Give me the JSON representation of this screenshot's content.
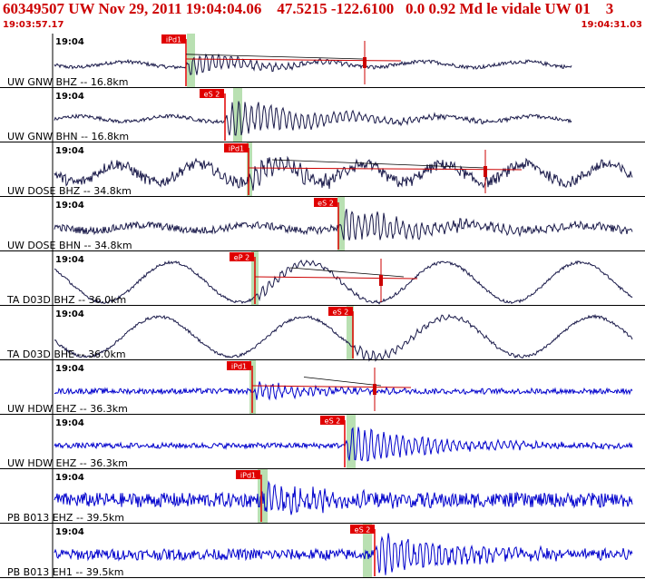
{
  "header": {
    "title": "60349507 UW Nov 29, 2011 19:04:04.06    47.5215 -122.6100   0.0 0.92 Md le vidale UW 01    3",
    "start_time": "19:03:57.17",
    "end_time": "19:04:31.03"
  },
  "colors": {
    "header_text": "#cc0000",
    "pick_box": "#e00000",
    "pick_text": "#ffffff",
    "window": "#b9e0b2",
    "trace_dark": "#1a1a4a",
    "trace_blue": "#0000cc",
    "coda_line": "#cc0000",
    "separator": "#000000"
  },
  "chart_data": {
    "type": "line",
    "title": "60349507 UW Nov 29, 2011 19:04:04.06    47.5215 -122.6100   0.0 0.92 Md le vidale UW 01    3",
    "time_range": [
      "19:03:57.17",
      "19:04:31.03"
    ],
    "series": [
      {
        "name": "UW GNW BHZ -- 16.8km",
        "time_label": "19:04",
        "pick": "iPd1",
        "color": "trace_dark"
      },
      {
        "name": "UW GNW BHN -- 16.8km",
        "time_label": "19:04",
        "pick": "eS 2",
        "color": "trace_dark"
      },
      {
        "name": "UW DOSE BHZ -- 34.8km",
        "time_label": "19:04",
        "pick": "iPd1",
        "color": "trace_dark"
      },
      {
        "name": "UW DOSE BHN -- 34.8km",
        "time_label": "19:04",
        "pick": "eS 2",
        "color": "trace_dark"
      },
      {
        "name": "TA D03D BHZ -- 36.0km",
        "time_label": "19:04",
        "pick": "eP 2",
        "color": "trace_dark"
      },
      {
        "name": "TA D03D BHE -- 36.0km",
        "time_label": "19:04",
        "pick": "eS 2",
        "color": "trace_dark"
      },
      {
        "name": "UW HDW EHZ -- 36.3km",
        "time_label": "19:04",
        "pick": "iPd1",
        "color": "trace_blue"
      },
      {
        "name": "UW HDW EHZ -- 36.3km",
        "time_label": "19:04",
        "pick": "eS 2",
        "color": "trace_blue"
      },
      {
        "name": "PB B013 EHZ -- 39.5km",
        "time_label": "19:04",
        "pick": "iPd1",
        "color": "trace_blue"
      },
      {
        "name": "PB B013 EH1 -- 39.5km",
        "time_label": "19:04",
        "pick": "eS 2",
        "color": "trace_blue"
      }
    ]
  }
}
